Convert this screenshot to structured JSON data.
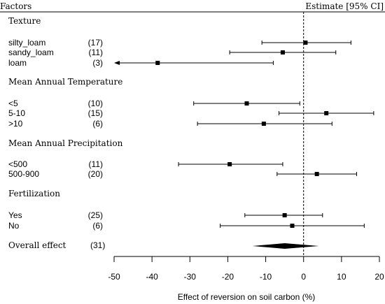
{
  "chart_data": {
    "type": "forest",
    "header_left": "Factors",
    "header_right": "Estimate [95% CI]",
    "xlabel": "Effect of reversion on soil carbon (%)",
    "xlim": [
      -50,
      20
    ],
    "xticks": [
      "-50",
      "-40",
      "-30",
      "-20",
      "-10",
      "0",
      "10",
      "20"
    ],
    "reference_line": 0,
    "groups": [
      {
        "name": "Texture",
        "rows": [
          {
            "label": "silty_loam",
            "n": "(17)",
            "est": 0.5,
            "lo": -11,
            "hi": 12.5,
            "arrow_left": false
          },
          {
            "label": "sandy_loam",
            "n": "(11)",
            "est": -5.5,
            "lo": -19.5,
            "hi": 8.5,
            "arrow_left": false
          },
          {
            "label": "loam",
            "n": "(3)",
            "est": -38.5,
            "lo": -50,
            "hi": -8,
            "arrow_left": true
          }
        ]
      },
      {
        "name": "Mean Annual Temperature",
        "rows": [
          {
            "label": "<5",
            "n": "(10)",
            "est": -15,
            "lo": -29,
            "hi": -1,
            "arrow_left": false
          },
          {
            "label": "5-10",
            "n": "(15)",
            "est": 6,
            "lo": -6.5,
            "hi": 18.5,
            "arrow_left": false
          },
          {
            "label": ">10",
            "n": "(6)",
            "est": -10.5,
            "lo": -28,
            "hi": 7.5,
            "arrow_left": false
          }
        ]
      },
      {
        "name": "Mean Annual Precipitation",
        "rows": [
          {
            "label": "<500",
            "n": "(11)",
            "est": -19.5,
            "lo": -33,
            "hi": -5.5,
            "arrow_left": false
          },
          {
            "label": "500-900",
            "n": "(20)",
            "est": 3.5,
            "lo": -7,
            "hi": 14,
            "arrow_left": false
          }
        ]
      },
      {
        "name": "Fertilization",
        "rows": [
          {
            "label": "Yes",
            "n": "(25)",
            "est": -5,
            "lo": -15.5,
            "hi": 5,
            "arrow_left": false
          },
          {
            "label": "No",
            "n": "(6)",
            "est": -3,
            "lo": -22,
            "hi": 16,
            "arrow_left": false
          }
        ]
      }
    ],
    "overall": {
      "label": "Overall effect",
      "n": "(31)",
      "est": -5,
      "lo": -13.5,
      "hi": 4
    }
  }
}
